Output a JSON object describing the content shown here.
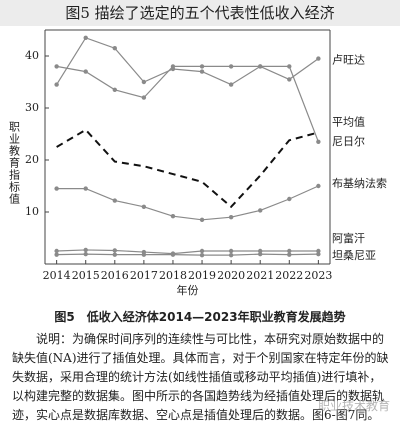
{
  "header": {
    "title": "图5 描绘了选定的五个代表性低收入经济"
  },
  "chart_data": {
    "type": "line",
    "y_label": "职业教育指标值",
    "x_label": "年份",
    "x": [
      2014,
      2015,
      2016,
      2017,
      2018,
      2019,
      2020,
      2021,
      2022,
      2023
    ],
    "xlim": [
      2013.6,
      2023.4
    ],
    "xticks": [
      2014,
      2015,
      2016,
      2017,
      2018,
      2019,
      2020,
      2021,
      2022,
      2023
    ],
    "ylim": [
      0,
      45
    ],
    "yticks": [
      10,
      20,
      30,
      40
    ],
    "series": [
      {
        "name": "卢旺达",
        "color": "#8a8a8a",
        "values": [
          34.5,
          43.5,
          41.5,
          35,
          37.5,
          37,
          34.5,
          38,
          35.5,
          39.5
        ]
      },
      {
        "name": "平均值",
        "color": "#111111",
        "dashed": true,
        "values": [
          22.5,
          25.8,
          19.7,
          18.8,
          17.3,
          15.8,
          11,
          17,
          23.8,
          25.3
        ]
      },
      {
        "name": "尼日尔",
        "color": "#8a8a8a",
        "values": [
          38,
          37,
          33.5,
          32,
          38,
          38,
          38,
          38,
          38,
          23.5
        ]
      },
      {
        "name": "布基纳法索",
        "color": "#8a8a8a",
        "values": [
          14.5,
          14.5,
          12.2,
          11,
          9.2,
          8.5,
          9,
          10.3,
          12.5,
          15
        ]
      },
      {
        "name": "阿富汗",
        "color": "#8a8a8a",
        "values": [
          2.5,
          2.7,
          2.6,
          2.3,
          2,
          2.5,
          2.5,
          2.5,
          2.5,
          2.5
        ]
      },
      {
        "name": "坦桑尼亚",
        "color": "#8a8a8a",
        "values": [
          1.8,
          1.9,
          1.8,
          1.8,
          1.8,
          1.7,
          1.7,
          1.9,
          1.8,
          1.9
        ]
      }
    ]
  },
  "caption": "图5　低收入经济体2014—2023年职业教育发展趋势",
  "note": "说明：为确保时间序列的连续性与可比性，本研究对原始数据中的缺失值(NA)进行了插值处理。具体而言，对于个别国家在特定年份的缺失数据，采用合理的统计方法(如线性插值或移动平均插值)进行填补，以构建完整的数据集。图中所示的各国趋势线为经插值处理后的数据轨迹，实心点是数据库数据、空心点是插值处理后的数据。图6-图7同。",
  "watermark": "职业技术教育"
}
